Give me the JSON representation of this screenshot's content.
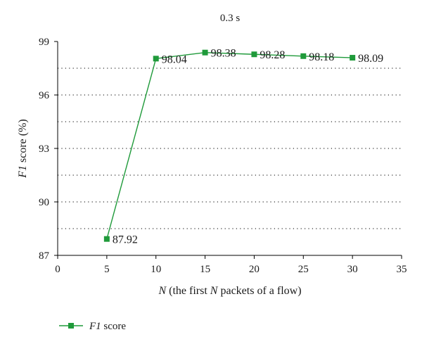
{
  "chart_data": {
    "type": "line",
    "title": "0.3 s",
    "xlabel": "N (the first N packets of a flow)",
    "ylabel": "F1 score (%)",
    "xlim": [
      0,
      35
    ],
    "ylim": [
      87,
      99
    ],
    "x_ticks": [
      0,
      5,
      10,
      15,
      20,
      25,
      30,
      35
    ],
    "y_ticks": [
      87,
      90,
      93,
      96,
      99
    ],
    "grid": "horizontal dotted",
    "legend": "bottom-left",
    "color": "#1f9a3a",
    "series": [
      {
        "name": "F1 score",
        "x": [
          5,
          10,
          15,
          20,
          25,
          30
        ],
        "values": [
          87.92,
          98.04,
          98.38,
          98.28,
          98.18,
          98.09
        ],
        "labels": [
          "87.92",
          "98.04",
          "98.38",
          "98.28",
          "98.18",
          "98.09"
        ]
      }
    ]
  }
}
